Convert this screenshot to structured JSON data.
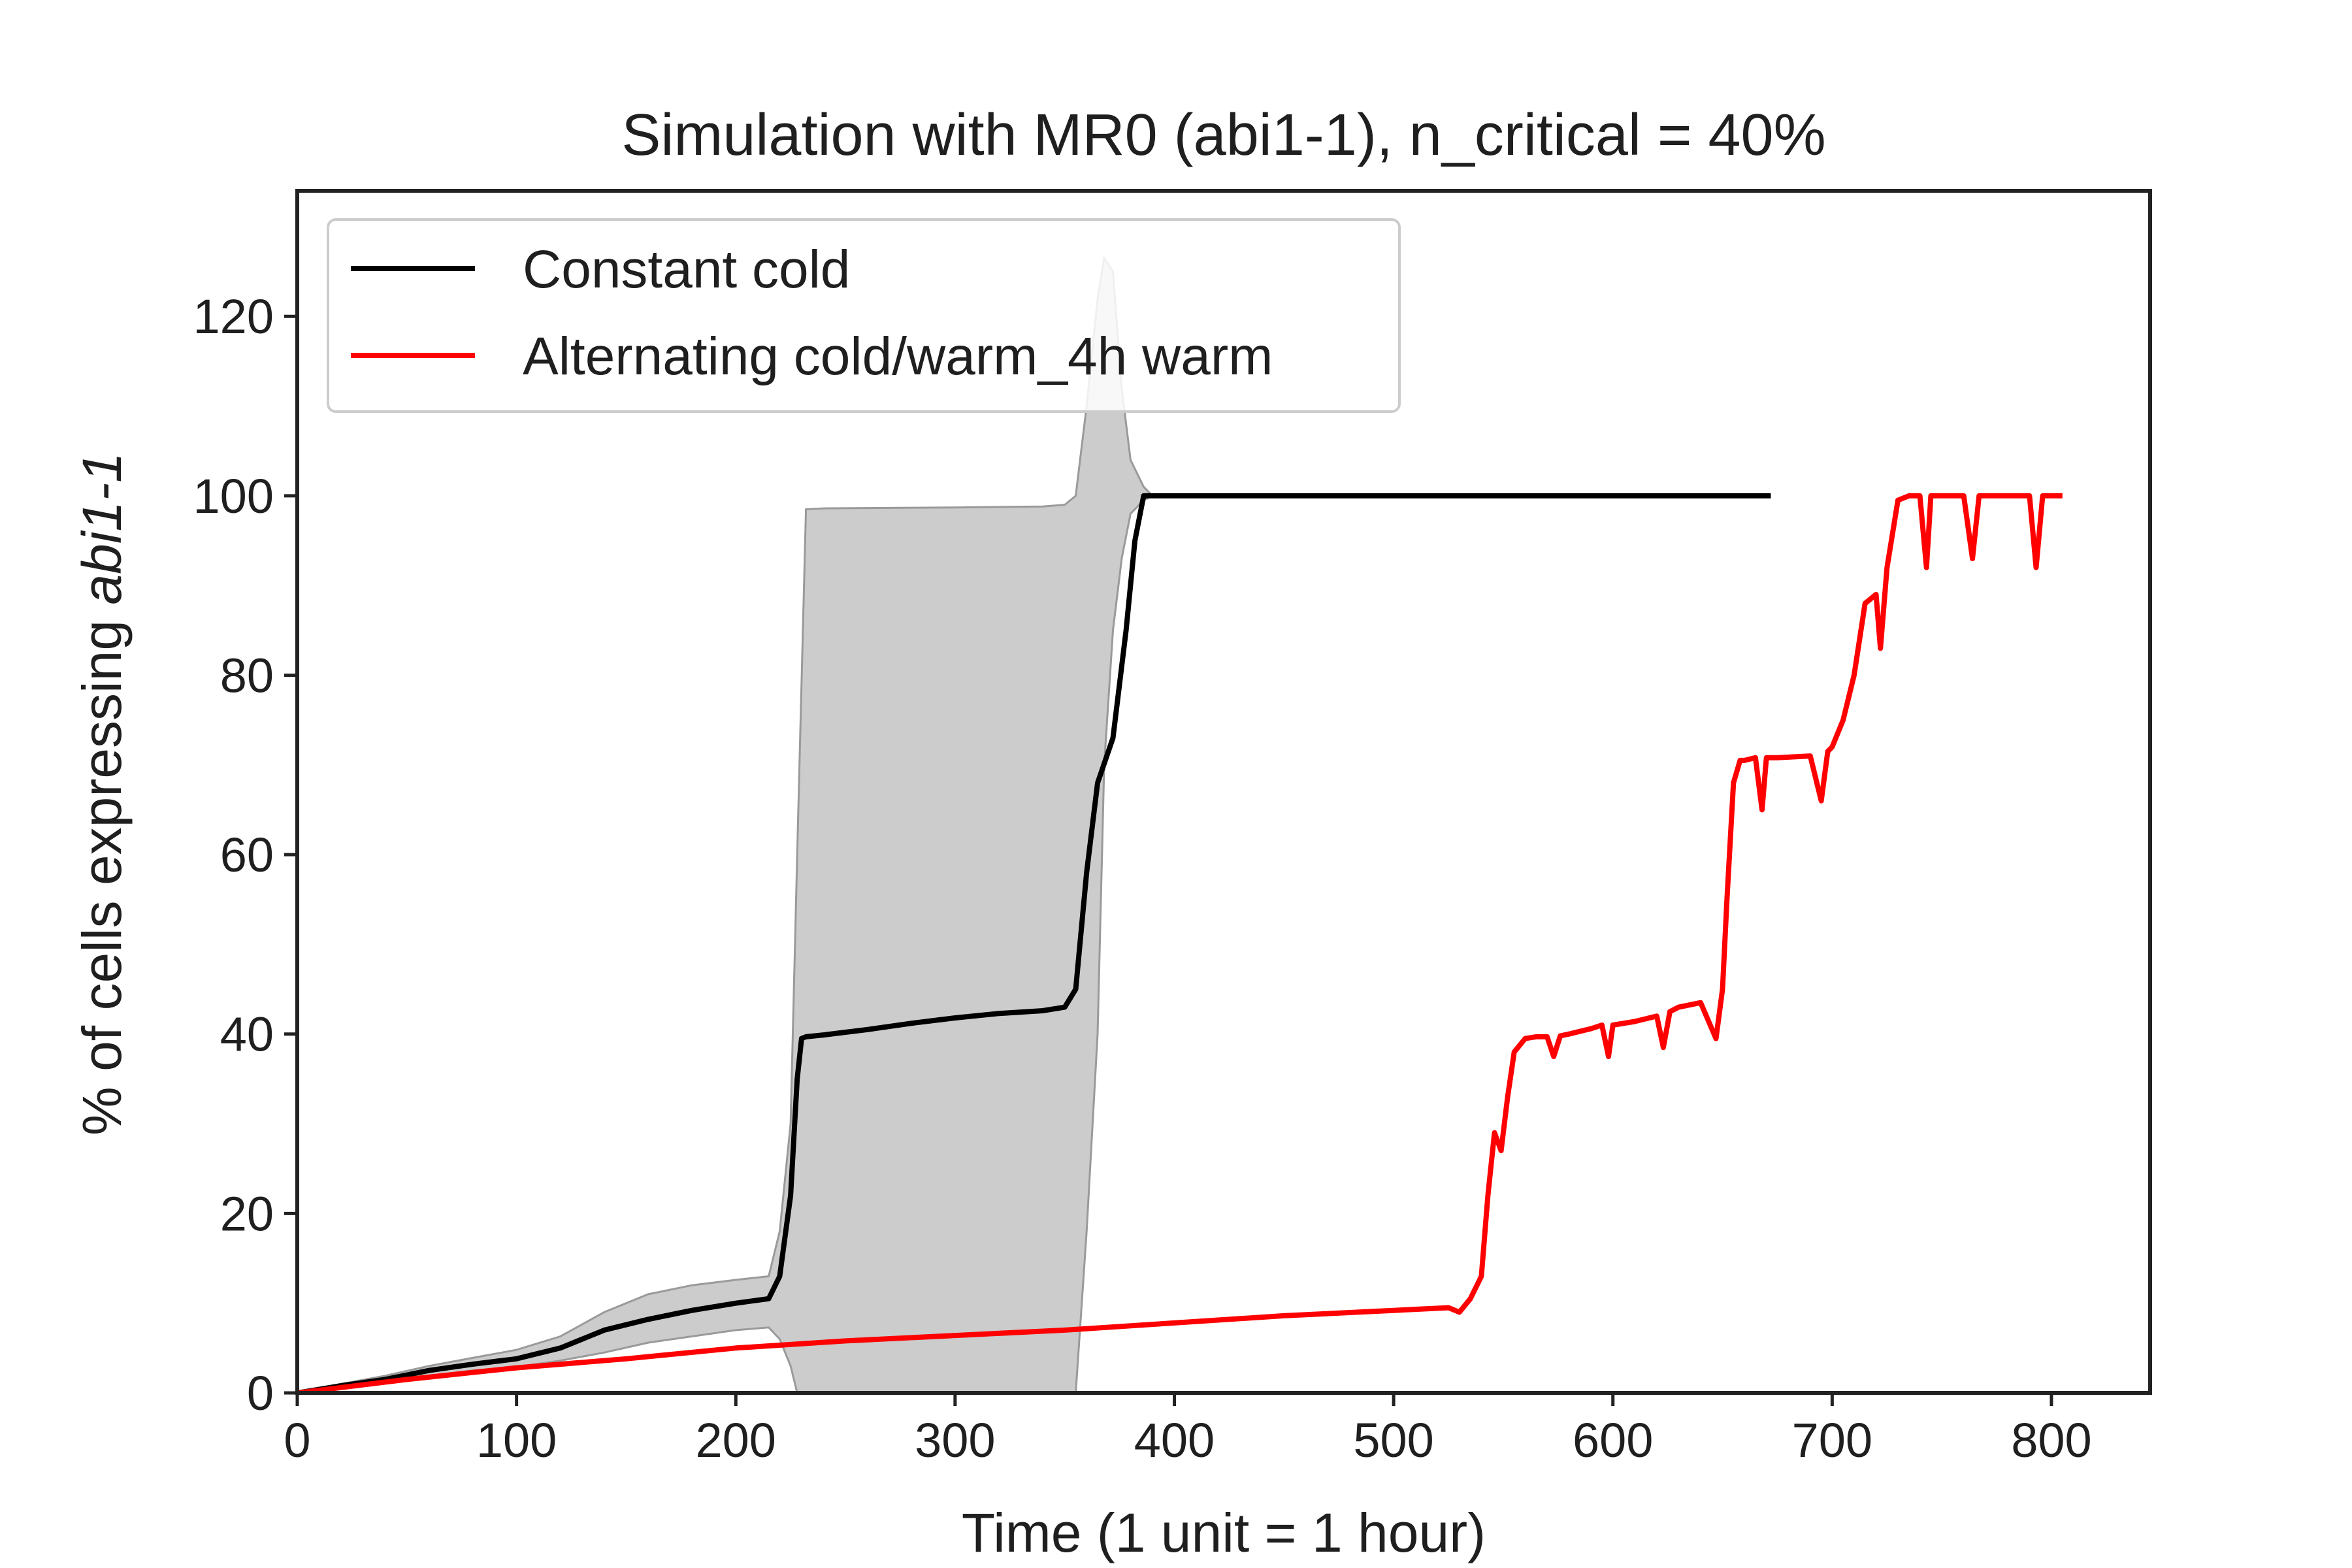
{
  "chart_data": {
    "type": "line",
    "title": "Simulation with MR0 (abi1-1), n_critical = 40%",
    "xlabel": "Time (1 unit = 1 hour)",
    "ylabel_prefix": "% of cells expressing ",
    "ylabel_italic": "abi1-1",
    "xlim": [
      0,
      845
    ],
    "ylim": [
      0,
      134
    ],
    "xticks": [
      0,
      100,
      200,
      300,
      400,
      500,
      600,
      700,
      800
    ],
    "yticks": [
      0,
      20,
      40,
      60,
      80,
      100,
      120
    ],
    "grid": false,
    "legend_position": "top-left",
    "series": [
      {
        "name": "Constant cold",
        "color": "#000000",
        "x": [
          0,
          20,
          40,
          60,
          80,
          100,
          120,
          140,
          160,
          180,
          200,
          215,
          220,
          225,
          228,
          230,
          232,
          240,
          260,
          280,
          300,
          320,
          340,
          350,
          355,
          360,
          365,
          372,
          378,
          382,
          386,
          390,
          400,
          500,
          600,
          672
        ],
        "y": [
          0,
          0.8,
          1.5,
          2.5,
          3.2,
          3.8,
          5.0,
          7.0,
          8.2,
          9.2,
          10.0,
          10.5,
          13,
          22,
          35,
          39.5,
          39.7,
          39.9,
          40.5,
          41.2,
          41.8,
          42.3,
          42.6,
          43,
          45,
          58,
          68,
          73,
          85,
          95,
          100,
          100,
          100,
          100,
          100,
          100
        ]
      },
      {
        "name": "Alternating cold/warm_4h warm",
        "color": "#ff0000",
        "x": [
          0,
          50,
          100,
          150,
          200,
          250,
          300,
          350,
          400,
          450,
          500,
          525,
          530,
          535,
          540,
          543,
          546,
          549,
          552,
          555,
          560,
          565,
          570,
          573,
          576,
          580,
          590,
          595,
          598,
          600,
          610,
          620,
          623,
          626,
          630,
          640,
          647,
          650,
          652,
          655,
          658,
          660,
          665,
          668,
          670,
          675,
          690,
          695,
          698,
          700,
          705,
          710,
          715,
          720,
          722,
          725,
          730,
          735,
          740,
          743,
          745,
          750,
          760,
          764,
          767,
          770,
          780,
          790,
          793,
          796,
          800,
          805
        ],
        "y": [
          0,
          1.5,
          2.8,
          3.8,
          5.0,
          5.8,
          6.4,
          7.0,
          7.8,
          8.6,
          9.2,
          9.5,
          9.0,
          10.5,
          13,
          22,
          29,
          27,
          33,
          38,
          39.5,
          39.7,
          39.7,
          37.5,
          39.8,
          40,
          40.6,
          41,
          37.5,
          41,
          41.4,
          42,
          38.5,
          42.5,
          43,
          43.5,
          39.5,
          45,
          55,
          68,
          70.5,
          70.5,
          70.8,
          65,
          70.8,
          70.8,
          71,
          66,
          71.5,
          72,
          75,
          80,
          88,
          89,
          83,
          92,
          99.5,
          100,
          100,
          92,
          100,
          100,
          100,
          93,
          100,
          100,
          100,
          100,
          92,
          100,
          100,
          100
        ]
      }
    ],
    "band": {
      "color": "#cccccc",
      "edge_color": "#9a9a9a",
      "x": [
        0,
        20,
        40,
        60,
        80,
        100,
        120,
        140,
        160,
        180,
        200,
        215,
        220,
        225,
        228,
        232,
        240,
        300,
        340,
        350,
        355,
        360,
        365,
        368,
        372,
        376,
        380,
        386,
        390
      ],
      "upper": [
        0,
        1.0,
        1.9,
        3.0,
        3.9,
        4.8,
        6.3,
        9.0,
        11.0,
        12.0,
        12.6,
        13,
        18,
        30,
        60,
        98.5,
        98.6,
        98.7,
        98.8,
        99,
        100,
        110,
        122,
        126.5,
        125,
        112,
        104,
        101,
        100
      ],
      "lower": [
        0,
        0.6,
        1.2,
        1.9,
        2.5,
        2.9,
        3.6,
        4.5,
        5.6,
        6.3,
        7.0,
        7.3,
        6.0,
        3.0,
        0,
        0,
        0,
        0,
        0,
        0,
        0,
        18,
        40,
        70,
        85,
        93,
        98,
        99.5,
        100
      ]
    }
  }
}
